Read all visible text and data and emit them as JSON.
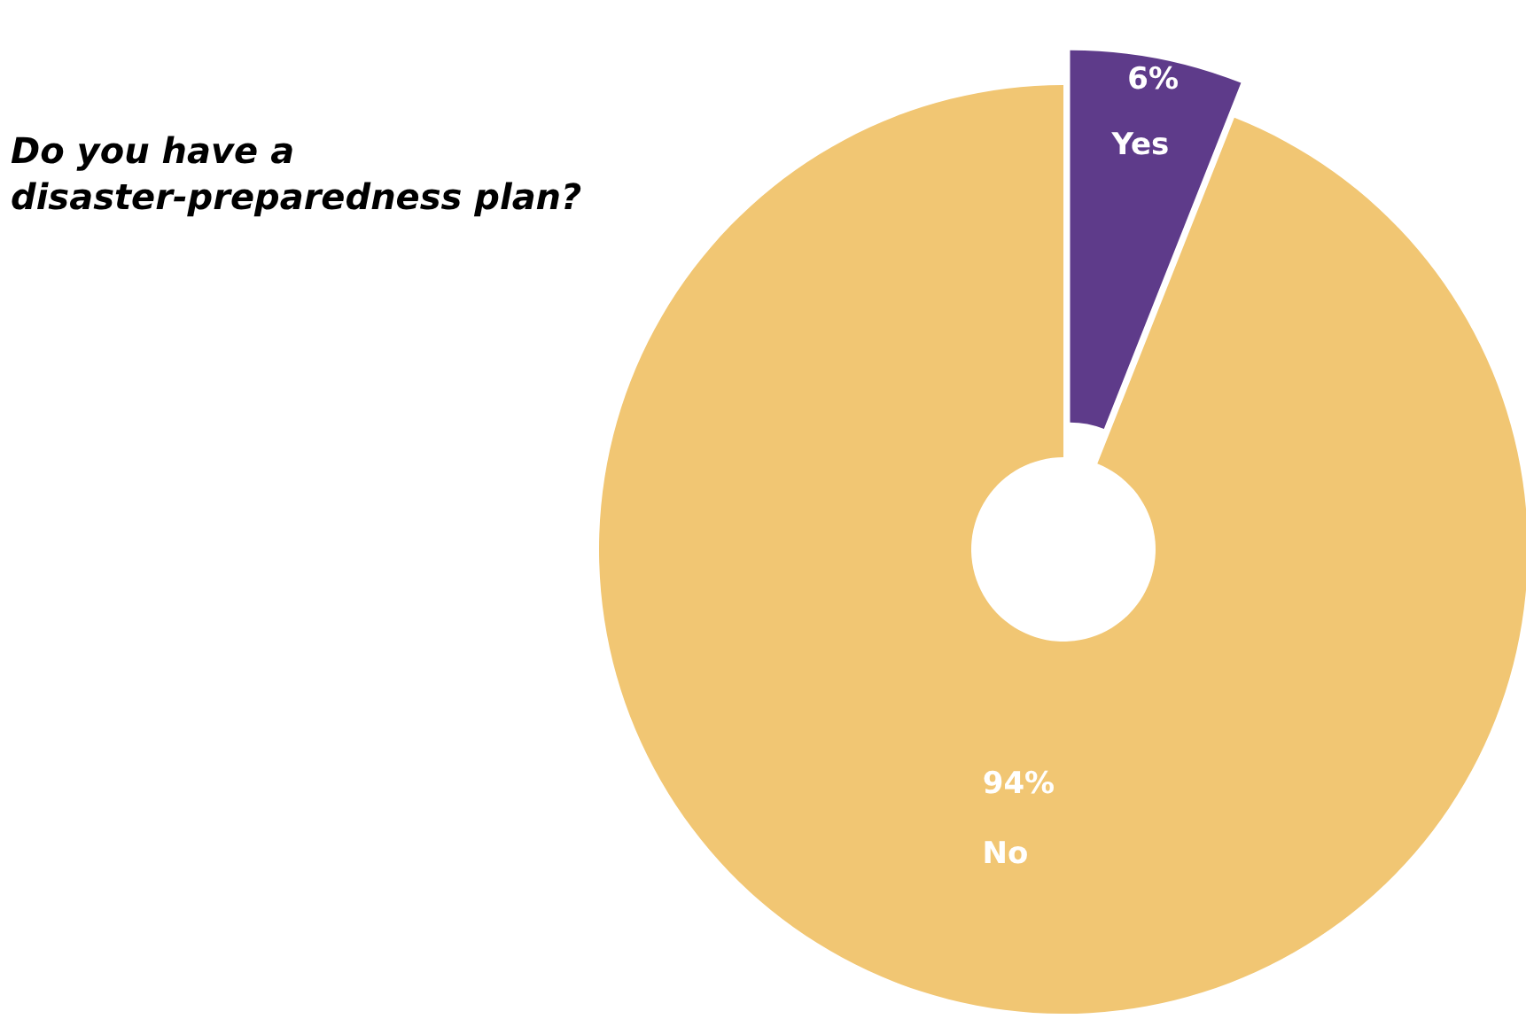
{
  "chart_data": {
    "type": "donut",
    "title": "Do you have a\ndisaster-preparedness plan?",
    "categories": [
      "Yes",
      "No"
    ],
    "values": [
      6,
      94
    ],
    "colors": [
      "#5e3b8a",
      "#f1c673"
    ],
    "value_labels": [
      "6%",
      "94%"
    ]
  }
}
